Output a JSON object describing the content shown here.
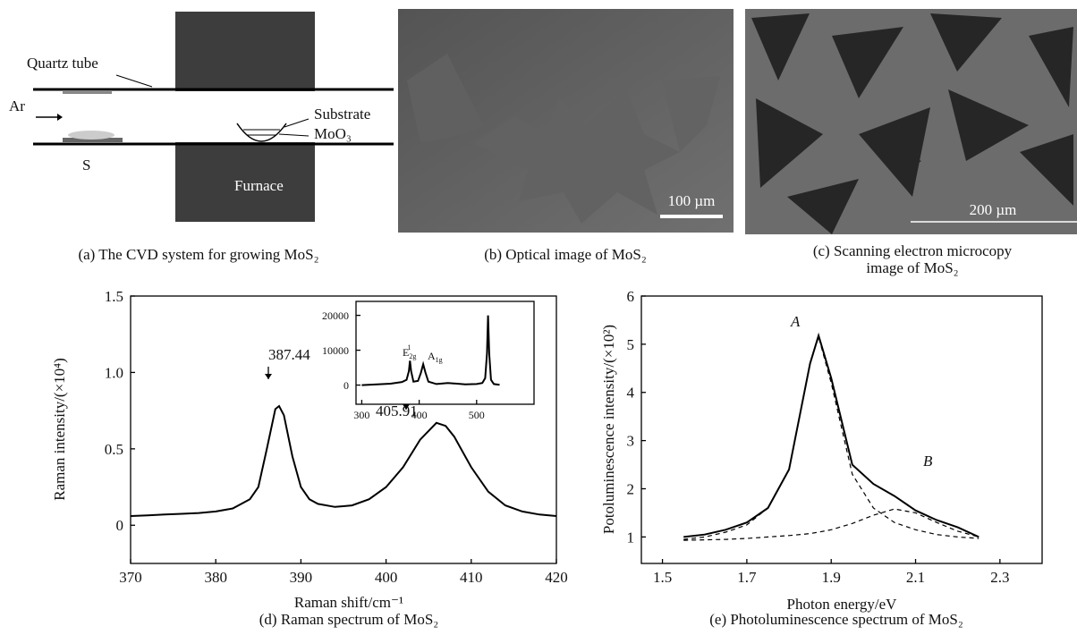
{
  "panels": {
    "a": {
      "quartz": "Quartz tube",
      "ar": "Ar",
      "s": "S",
      "substrate": "Substrate",
      "moo3": "MoO₃",
      "furnace": "Furnace",
      "caption": "(a) The CVD system for growing MoS₂"
    },
    "b": {
      "scale": "100 µm",
      "caption": "(b) Optical image of MoS₂"
    },
    "c": {
      "scale": "200 µm",
      "caption": [
        "(c) Scanning electron microcopy",
        "image of MoS₂"
      ]
    }
  },
  "chart_data": [
    {
      "type": "line",
      "caption": "(d) Raman spectrum of MoS₂",
      "xlabel": "Raman shift/cm⁻¹",
      "ylabel": "Raman intensity/(×10⁴)",
      "xlim": [
        370,
        420
      ],
      "xticks": [
        370,
        380,
        390,
        400,
        410,
        420
      ],
      "ylim": [
        -0.25,
        1.5
      ],
      "yticks": [
        0,
        0.5,
        {
          "value": 1,
          "label": "1.0"
        },
        1.5
      ],
      "x": [
        370,
        372,
        374,
        376,
        378,
        380,
        382,
        384,
        385,
        386,
        387,
        387.44,
        388,
        389,
        390,
        391,
        392,
        394,
        396,
        398,
        400,
        402,
        404,
        405.91,
        407,
        408,
        410,
        412,
        414,
        416,
        418,
        420
      ],
      "series": [
        {
          "color": "#000000",
          "style": "solid",
          "values": [
            0.06,
            0.065,
            0.07,
            0.075,
            0.08,
            0.09,
            0.11,
            0.17,
            0.25,
            0.5,
            0.76,
            0.78,
            0.72,
            0.45,
            0.25,
            0.17,
            0.14,
            0.12,
            0.13,
            0.17,
            0.25,
            0.38,
            0.56,
            0.67,
            0.65,
            0.58,
            0.38,
            0.22,
            0.13,
            0.09,
            0.07,
            0.06
          ]
        }
      ],
      "annotations": [
        {
          "text": "387.44"
        },
        {
          "text": "405.91"
        }
      ]
    },
    {
      "type": "line",
      "caption": "(e) Photoluminescence spectrum of MoS₂",
      "xlabel": "Photon energy/eV",
      "ylabel": "Potoluminescence intensity/(×10²)",
      "xlim": [
        1.45,
        2.4
      ],
      "xticks": [
        1.5,
        1.7,
        1.9,
        2.1,
        2.3
      ],
      "ylim": [
        0.45,
        6
      ],
      "yticks": [
        1,
        2,
        3,
        4,
        5,
        6
      ],
      "x": [
        1.55,
        1.6,
        1.65,
        1.7,
        1.75,
        1.8,
        1.85,
        1.87,
        1.9,
        1.95,
        2.0,
        2.05,
        2.1,
        2.15,
        2.2,
        2.25
      ],
      "series": [
        {
          "color": "#000000",
          "style": "solid",
          "values": [
            1.0,
            1.05,
            1.15,
            1.3,
            1.6,
            2.4,
            4.6,
            5.18,
            4.3,
            2.5,
            2.1,
            1.85,
            1.55,
            1.35,
            1.2,
            1.0
          ]
        },
        {
          "color": "#000000",
          "style": "dashed",
          "values": [
            0.95,
            1.0,
            1.1,
            1.25,
            1.6,
            2.4,
            4.6,
            5.15,
            4.2,
            2.3,
            1.6,
            1.3,
            1.15,
            1.05,
            1.0,
            0.97
          ]
        },
        {
          "color": "#000000",
          "style": "dashed",
          "values": [
            0.93,
            0.94,
            0.95,
            0.97,
            1.0,
            1.03,
            1.07,
            1.1,
            1.15,
            1.28,
            1.45,
            1.58,
            1.5,
            1.3,
            1.12,
            1.0
          ]
        }
      ],
      "annotations": [
        {
          "text": "A"
        },
        {
          "text": "B"
        }
      ]
    },
    {
      "type": "line",
      "xlim": [
        290,
        600
      ],
      "xticks": [
        300,
        400,
        500
      ],
      "ylim": [
        -5500,
        24000
      ],
      "yticks": [
        0,
        10000,
        20000
      ],
      "x": [
        300,
        350,
        370,
        378,
        382,
        384,
        386,
        390,
        398,
        403,
        407,
        411,
        416,
        430,
        450,
        480,
        500,
        510,
        515,
        518,
        520,
        522,
        525,
        530,
        540
      ],
      "series": [
        {
          "color": "#000000",
          "style": "solid",
          "values": [
            0,
            400,
            900,
            1500,
            4000,
            7000,
            4000,
            1000,
            1200,
            3500,
            6000,
            3500,
            1000,
            300,
            600,
            200,
            300,
            600,
            2000,
            9000,
            20000,
            9000,
            1500,
            300,
            100
          ]
        }
      ],
      "annotations": [
        {
          "text": "E",
          "sub": "2g",
          "sup": "1"
        },
        {
          "text": "A",
          "sub": "1g"
        }
      ]
    }
  ]
}
